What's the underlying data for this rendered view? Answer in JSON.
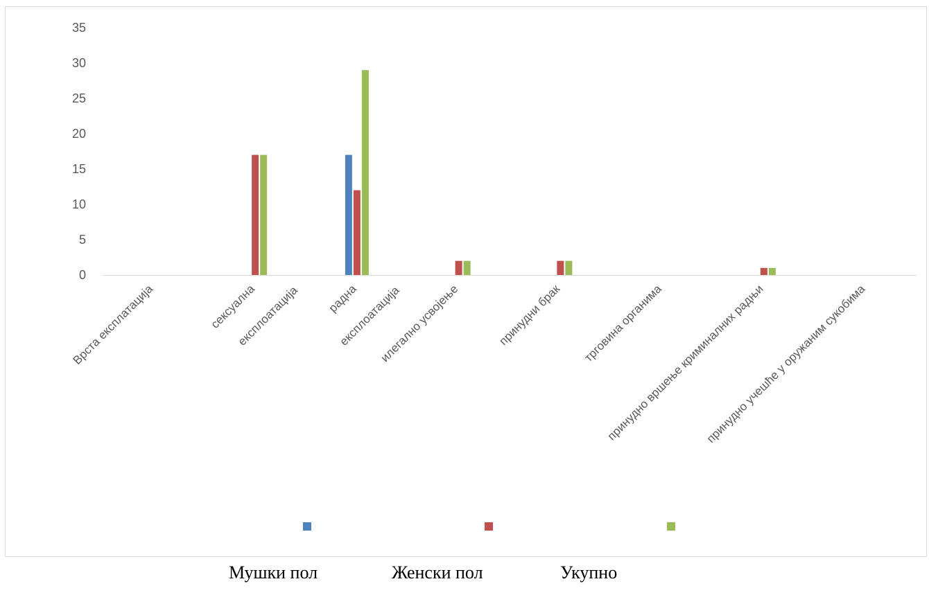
{
  "chart_data": {
    "type": "bar",
    "categories": [
      "Врста експлатација",
      [
        "сексуална",
        "експлоатација"
      ],
      [
        "радна",
        "експлоатација"
      ],
      "илегално усвојење",
      "принудни брак",
      "трговина органима",
      "принудно вршење криминалних радњи",
      "принудно учешће у оружаним сукобима"
    ],
    "series": [
      {
        "name": "Мушки пол",
        "color": "#4f81bd",
        "values": [
          null,
          null,
          17,
          null,
          null,
          null,
          null,
          null
        ]
      },
      {
        "name": "Женски пол",
        "color": "#c0504d",
        "values": [
          null,
          17,
          12,
          2,
          2,
          null,
          1,
          null
        ]
      },
      {
        "name": "Укупно",
        "color": "#9bbb59",
        "values": [
          null,
          17,
          29,
          2,
          2,
          null,
          1,
          null
        ]
      }
    ],
    "ylim": [
      0,
      35
    ],
    "yticks": [
      0,
      5,
      10,
      15,
      20,
      25,
      30,
      35
    ],
    "grid": false,
    "legend_position": "bottom"
  }
}
